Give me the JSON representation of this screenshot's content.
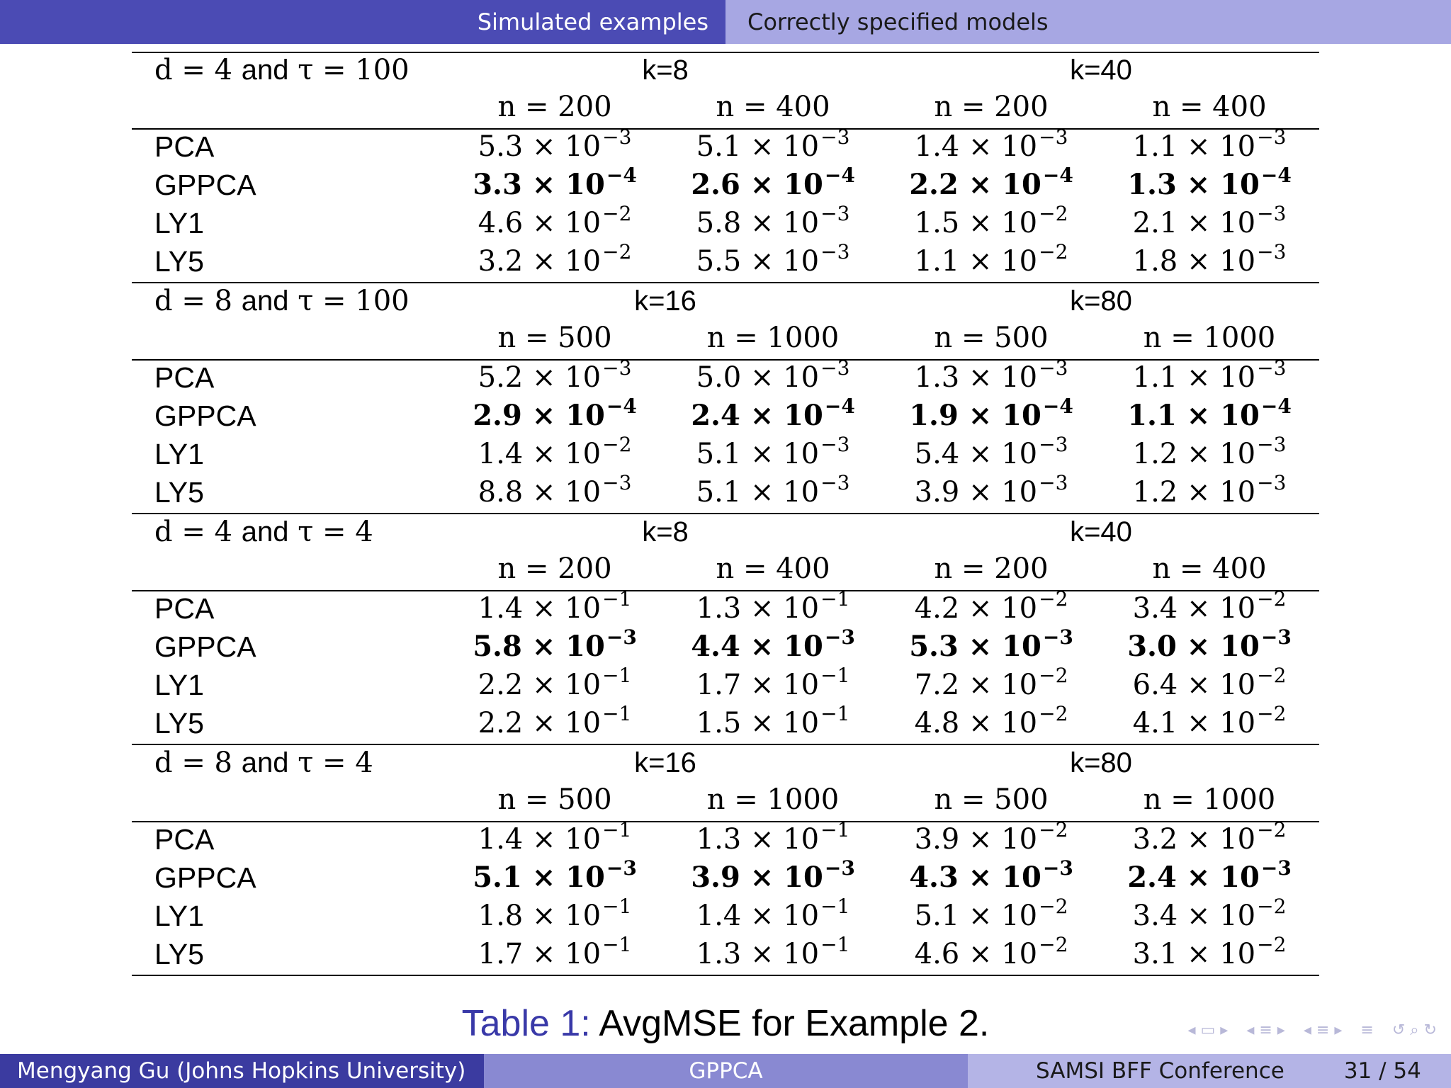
{
  "header": {
    "section": "Simulated examples",
    "subsection": "Correctly specified models"
  },
  "table": {
    "blocks": [
      {
        "param_left": "d = 4",
        "param_and": "and",
        "param_right": "τ = 100",
        "k_left": "k=8",
        "k_right": "k=40",
        "n_headers": [
          "n = 200",
          "n = 400",
          "n = 200",
          "n = 400"
        ],
        "rows": [
          {
            "label": "PCA",
            "bold": false,
            "cells": [
              {
                "m": "5.3",
                "e": "−3"
              },
              {
                "m": "5.1",
                "e": "−3"
              },
              {
                "m": "1.4",
                "e": "−3"
              },
              {
                "m": "1.1",
                "e": "−3"
              }
            ]
          },
          {
            "label": "GPPCA",
            "bold": true,
            "cells": [
              {
                "m": "3.3",
                "e": "−4"
              },
              {
                "m": "2.6",
                "e": "−4"
              },
              {
                "m": "2.2",
                "e": "−4"
              },
              {
                "m": "1.3",
                "e": "−4"
              }
            ]
          },
          {
            "label": "LY1",
            "bold": false,
            "cells": [
              {
                "m": "4.6",
                "e": "−2"
              },
              {
                "m": "5.8",
                "e": "−3"
              },
              {
                "m": "1.5",
                "e": "−2"
              },
              {
                "m": "2.1",
                "e": "−3"
              }
            ]
          },
          {
            "label": "LY5",
            "bold": false,
            "cells": [
              {
                "m": "3.2",
                "e": "−2"
              },
              {
                "m": "5.5",
                "e": "−3"
              },
              {
                "m": "1.1",
                "e": "−2"
              },
              {
                "m": "1.8",
                "e": "−3"
              }
            ]
          }
        ]
      },
      {
        "param_left": "d = 8",
        "param_and": "and",
        "param_right": "τ = 100",
        "k_left": "k=16",
        "k_right": "k=80",
        "n_headers": [
          "n = 500",
          "n = 1000",
          "n = 500",
          "n = 1000"
        ],
        "rows": [
          {
            "label": "PCA",
            "bold": false,
            "cells": [
              {
                "m": "5.2",
                "e": "−3"
              },
              {
                "m": "5.0",
                "e": "−3"
              },
              {
                "m": "1.3",
                "e": "−3"
              },
              {
                "m": "1.1",
                "e": "−3"
              }
            ]
          },
          {
            "label": "GPPCA",
            "bold": true,
            "cells": [
              {
                "m": "2.9",
                "e": "−4"
              },
              {
                "m": "2.4",
                "e": "−4"
              },
              {
                "m": "1.9",
                "e": "−4"
              },
              {
                "m": "1.1",
                "e": "−4"
              }
            ]
          },
          {
            "label": "LY1",
            "bold": false,
            "cells": [
              {
                "m": "1.4",
                "e": "−2"
              },
              {
                "m": "5.1",
                "e": "−3"
              },
              {
                "m": "5.4",
                "e": "−3"
              },
              {
                "m": "1.2",
                "e": "−3"
              }
            ]
          },
          {
            "label": "LY5",
            "bold": false,
            "cells": [
              {
                "m": "8.8",
                "e": "−3"
              },
              {
                "m": "5.1",
                "e": "−3"
              },
              {
                "m": "3.9",
                "e": "−3"
              },
              {
                "m": "1.2",
                "e": "−3"
              }
            ]
          }
        ]
      },
      {
        "param_left": "d = 4",
        "param_and": "and",
        "param_right": "τ = 4",
        "k_left": "k=8",
        "k_right": "k=40",
        "n_headers": [
          "n = 200",
          "n = 400",
          "n = 200",
          "n = 400"
        ],
        "rows": [
          {
            "label": "PCA",
            "bold": false,
            "cells": [
              {
                "m": "1.4",
                "e": "−1"
              },
              {
                "m": "1.3",
                "e": "−1"
              },
              {
                "m": "4.2",
                "e": "−2"
              },
              {
                "m": "3.4",
                "e": "−2"
              }
            ]
          },
          {
            "label": "GPPCA",
            "bold": true,
            "cells": [
              {
                "m": "5.8",
                "e": "−3"
              },
              {
                "m": "4.4",
                "e": "−3"
              },
              {
                "m": "5.3",
                "e": "−3"
              },
              {
                "m": "3.0",
                "e": "−3"
              }
            ]
          },
          {
            "label": "LY1",
            "bold": false,
            "cells": [
              {
                "m": "2.2",
                "e": "−1"
              },
              {
                "m": "1.7",
                "e": "−1"
              },
              {
                "m": "7.2",
                "e": "−2"
              },
              {
                "m": "6.4",
                "e": "−2"
              }
            ]
          },
          {
            "label": "LY5",
            "bold": false,
            "cells": [
              {
                "m": "2.2",
                "e": "−1"
              },
              {
                "m": "1.5",
                "e": "−1"
              },
              {
                "m": "4.8",
                "e": "−2"
              },
              {
                "m": "4.1",
                "e": "−2"
              }
            ]
          }
        ]
      },
      {
        "param_left": "d = 8",
        "param_and": "and",
        "param_right": "τ = 4",
        "k_left": "k=16",
        "k_right": "k=80",
        "n_headers": [
          "n = 500",
          "n = 1000",
          "n = 500",
          "n = 1000"
        ],
        "rows": [
          {
            "label": "PCA",
            "bold": false,
            "cells": [
              {
                "m": "1.4",
                "e": "−1"
              },
              {
                "m": "1.3",
                "e": "−1"
              },
              {
                "m": "3.9",
                "e": "−2"
              },
              {
                "m": "3.2",
                "e": "−2"
              }
            ]
          },
          {
            "label": "GPPCA",
            "bold": true,
            "cells": [
              {
                "m": "5.1",
                "e": "−3"
              },
              {
                "m": "3.9",
                "e": "−3"
              },
              {
                "m": "4.3",
                "e": "−3"
              },
              {
                "m": "2.4",
                "e": "−3"
              }
            ]
          },
          {
            "label": "LY1",
            "bold": false,
            "cells": [
              {
                "m": "1.8",
                "e": "−1"
              },
              {
                "m": "1.4",
                "e": "−1"
              },
              {
                "m": "5.1",
                "e": "−2"
              },
              {
                "m": "3.4",
                "e": "−2"
              }
            ]
          },
          {
            "label": "LY5",
            "bold": false,
            "cells": [
              {
                "m": "1.7",
                "e": "−1"
              },
              {
                "m": "1.3",
                "e": "−1"
              },
              {
                "m": "4.6",
                "e": "−2"
              },
              {
                "m": "3.1",
                "e": "−2"
              }
            ]
          }
        ]
      }
    ],
    "times": "×",
    "base": "10"
  },
  "caption": {
    "label": "Table 1:",
    "text": "AvgMSE for Example 2."
  },
  "nav_icons": [
    "nav-frame-icon",
    "nav-subsection-icon",
    "nav-section-icon",
    "nav-align-icon",
    "nav-search-icon"
  ],
  "footer": {
    "author": "Mengyang Gu  (Johns Hopkins University)",
    "short_title": "GPPCA",
    "event": "SAMSI BFF Conference",
    "page": "31 / 54"
  },
  "colors": {
    "header_dark": "#4b4bb4",
    "header_light": "#a7a7e3",
    "footer_dark": "#3b3ba0",
    "footer_mid": "#8989d2",
    "footer_light": "#b4b4e6",
    "caption_label": "#3939a8"
  }
}
